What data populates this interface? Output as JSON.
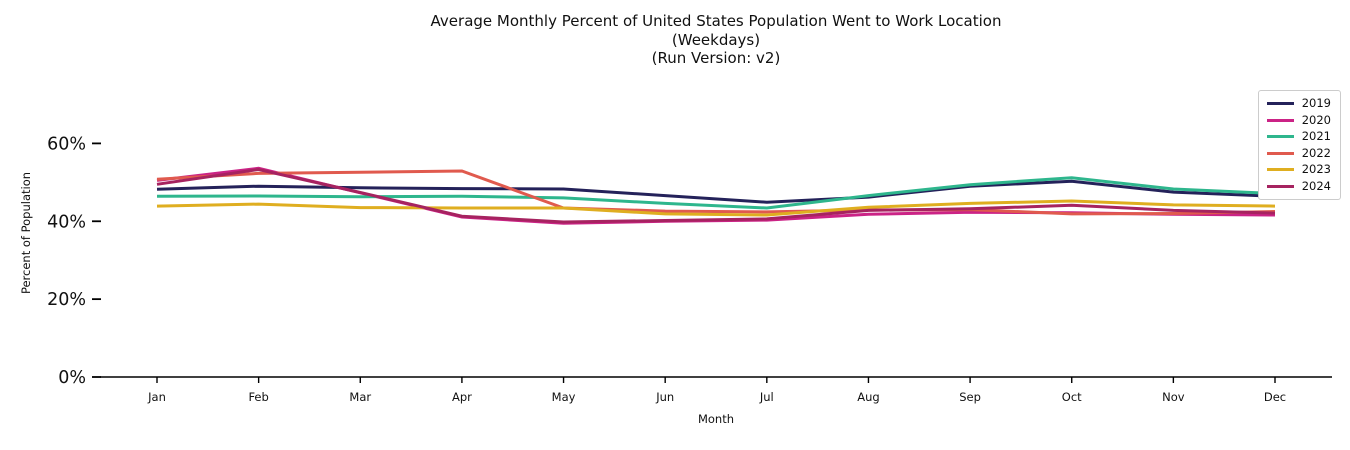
{
  "figure": {
    "background": "#ffffff",
    "text_color": "#111111",
    "axis_color": "#000000"
  },
  "chart_data": {
    "type": "line",
    "title": "Average Monthly Percent of United States Population Went to Work Location",
    "subtitle1": "(Weekdays)",
    "subtitle2": "(Run Version: v2)",
    "xlabel": "Month",
    "ylabel": "Percent of Population",
    "categories": [
      "Jan",
      "Feb",
      "Mar",
      "Apr",
      "May",
      "Jun",
      "Jul",
      "Aug",
      "Sep",
      "Oct",
      "Nov",
      "Dec"
    ],
    "yticks": [
      {
        "value": 0,
        "label": "0%"
      },
      {
        "value": 20,
        "label": "20%"
      },
      {
        "value": 40,
        "label": "40%"
      },
      {
        "value": 60,
        "label": "60%"
      }
    ],
    "ylim": [
      0,
      75
    ],
    "grid": false,
    "legend_position": "upper right",
    "series": [
      {
        "name": "2019",
        "color": "#24225a",
        "values": [
          48.2,
          49.0,
          48.6,
          48.4,
          48.3,
          46.6,
          44.9,
          46.2,
          49.0,
          50.3,
          47.5,
          46.4
        ]
      },
      {
        "name": "2020",
        "color": "#cb2386",
        "values": [
          50.5,
          53.6,
          47.3,
          41.1,
          39.5,
          40.0,
          40.3,
          41.8,
          42.3,
          42.2,
          41.8,
          41.6
        ]
      },
      {
        "name": "2021",
        "color": "#2eb68d",
        "values": [
          46.4,
          46.5,
          46.3,
          46.4,
          46.0,
          44.6,
          43.4,
          46.6,
          49.4,
          51.2,
          48.3,
          47.1
        ]
      },
      {
        "name": "2022",
        "color": "#e05a4e",
        "values": [
          50.8,
          52.3,
          52.6,
          52.9,
          43.4,
          42.6,
          42.4,
          42.9,
          43.0,
          41.9,
          42.0,
          42.5
        ]
      },
      {
        "name": "2023",
        "color": "#dfae20",
        "values": [
          43.9,
          44.4,
          43.5,
          43.4,
          43.4,
          41.9,
          41.6,
          43.6,
          44.6,
          45.2,
          44.2,
          43.9
        ]
      },
      {
        "name": "2024",
        "color": "#a62360",
        "values": [
          49.5,
          53.3,
          47.4,
          41.3,
          39.8,
          40.2,
          40.6,
          42.8,
          43.2,
          44.1,
          42.8,
          42.1
        ]
      }
    ]
  }
}
